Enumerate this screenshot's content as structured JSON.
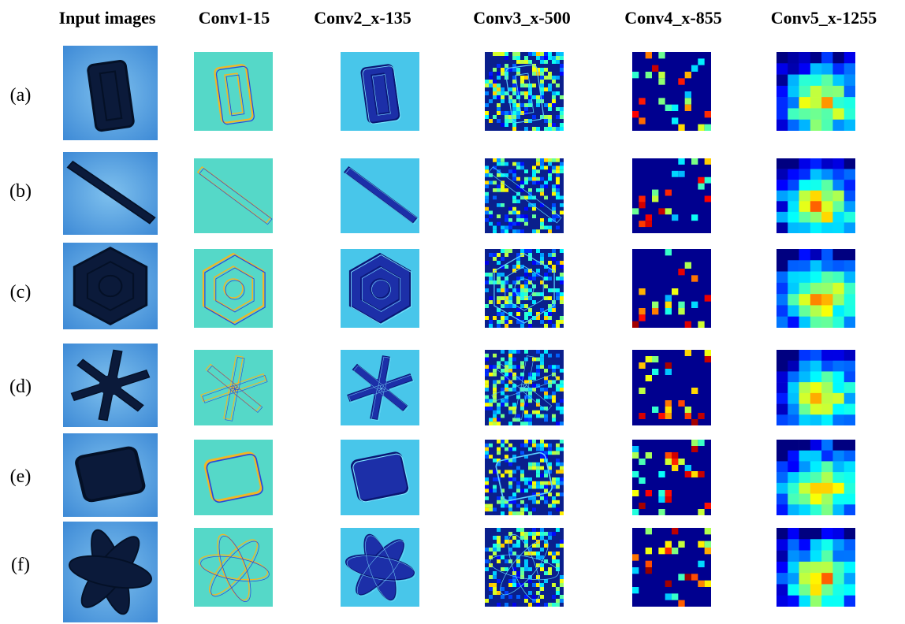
{
  "figure": {
    "column_headers": [
      "Input images",
      "Conv1-15",
      "Conv2_x-135",
      "Conv3_x-500",
      "Conv4_x-855",
      "Conv5_x-1255"
    ],
    "row_labels": [
      "(a)",
      "(b)",
      "(c)",
      "(d)",
      "(e)",
      "(f)"
    ],
    "rows": [
      {
        "label": "(a)",
        "shape": "column crystal"
      },
      {
        "label": "(b)",
        "shape": "needle"
      },
      {
        "label": "(c)",
        "shape": "hexagonal plate"
      },
      {
        "label": "(d)",
        "shape": "dendrite"
      },
      {
        "label": "(e)",
        "shape": "rectangular plate"
      },
      {
        "label": "(f)",
        "shape": "aggregate"
      }
    ]
  }
}
